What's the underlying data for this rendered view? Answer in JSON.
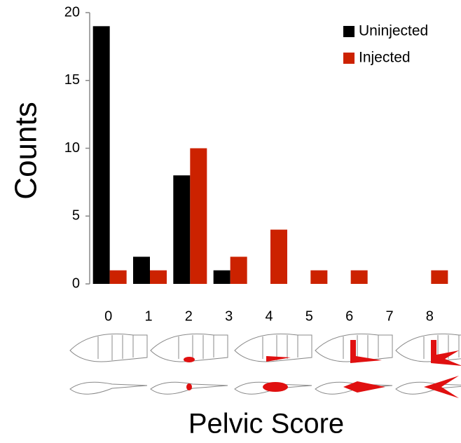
{
  "chart_data": {
    "type": "bar",
    "x_label": "Pelvic Score",
    "y_label": "Counts",
    "categories": [
      "0",
      "1",
      "2",
      "3",
      "4",
      "5",
      "6",
      "7",
      "8"
    ],
    "series": [
      {
        "name": "Uninjected",
        "color": "#000000",
        "values": [
          19,
          2,
          8,
          1,
          0,
          0,
          0,
          0,
          0
        ]
      },
      {
        "name": "Injected",
        "color": "#cc2200",
        "values": [
          1,
          1,
          10,
          2,
          4,
          1,
          1,
          0,
          1
        ]
      }
    ],
    "ylim": [
      0,
      20
    ],
    "yticks": [
      0,
      5,
      10,
      15,
      20
    ],
    "grid": false,
    "legend": "upper right"
  }
}
